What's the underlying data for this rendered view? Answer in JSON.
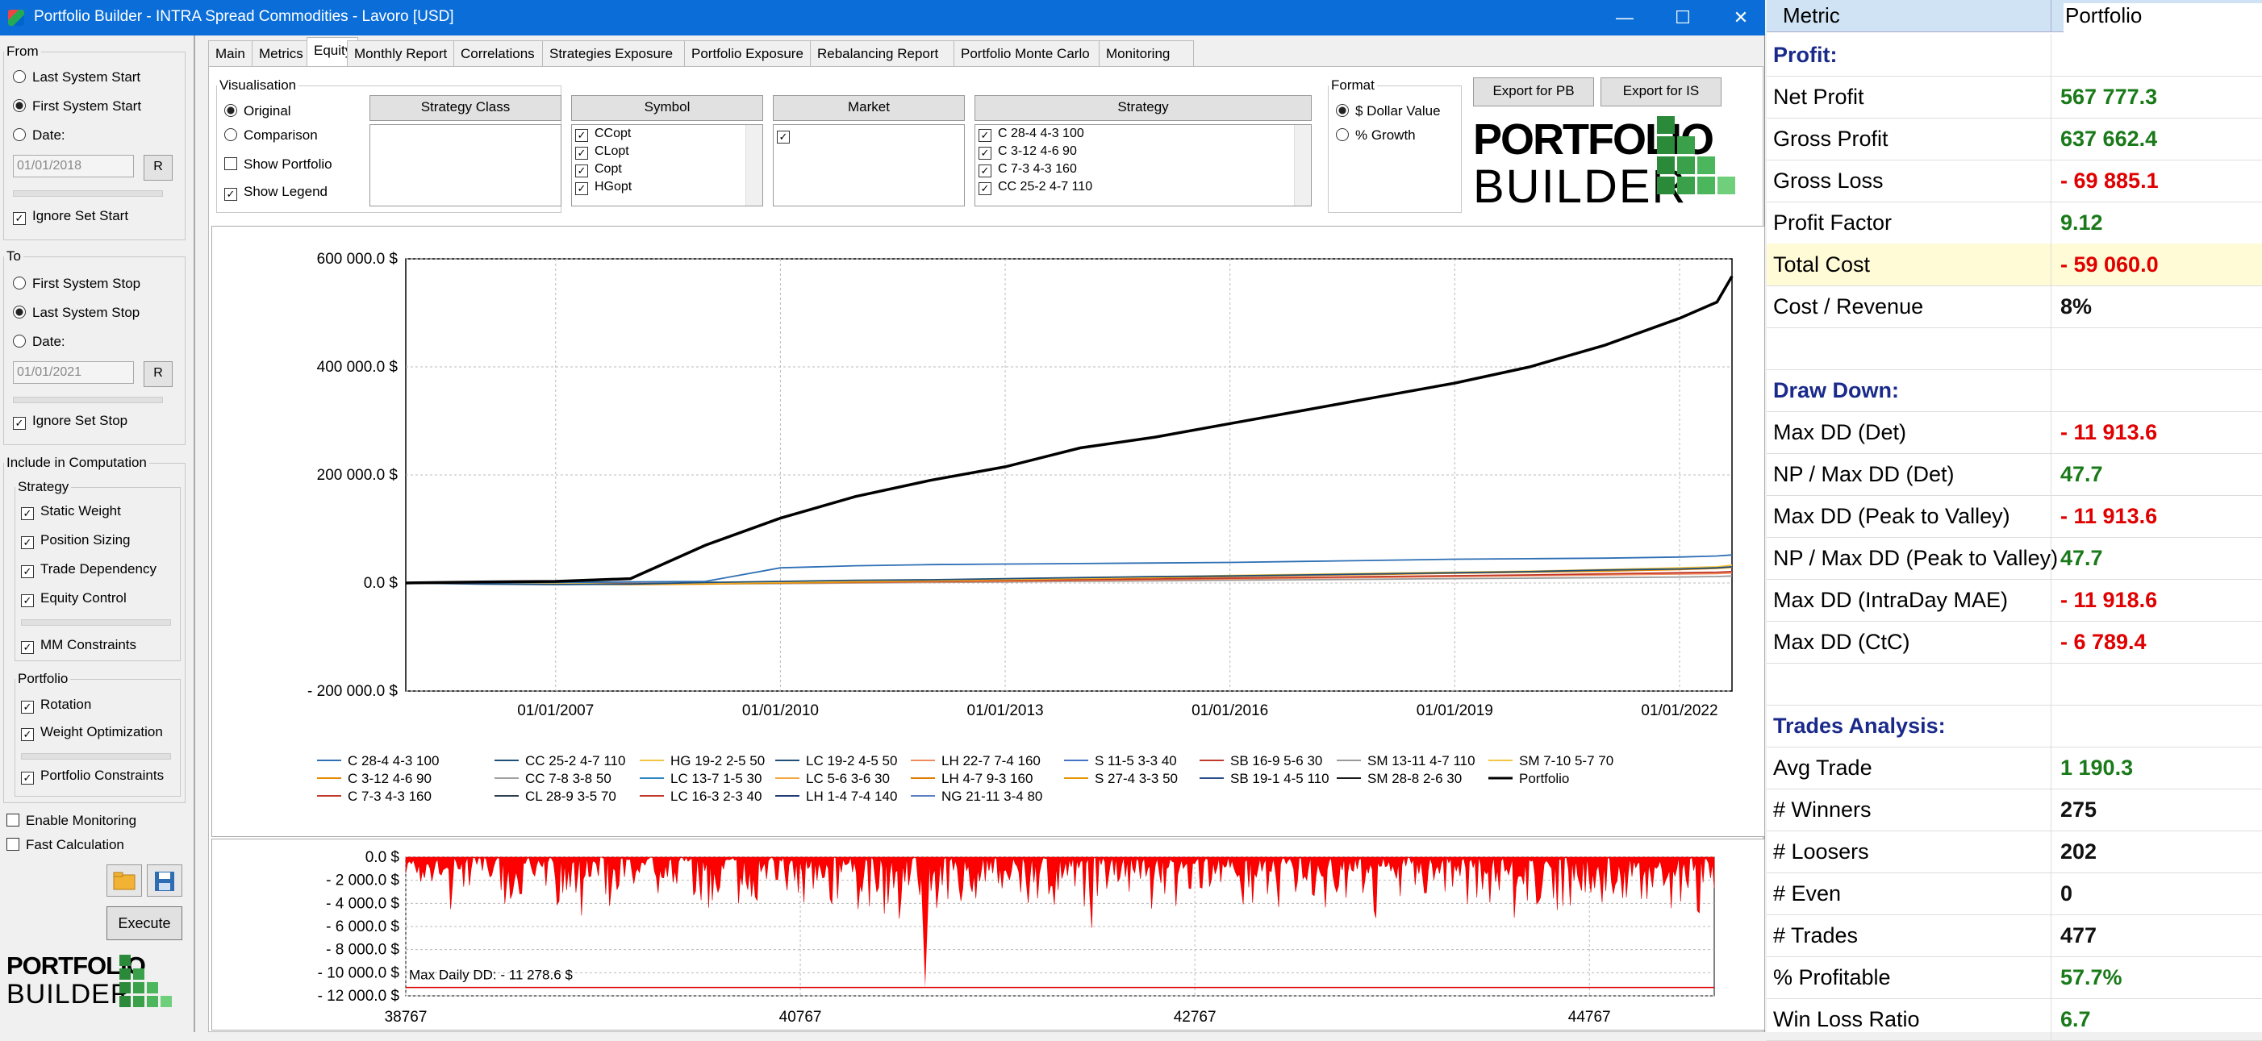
{
  "window": {
    "title": "Portfolio Builder - INTRA Spread Commodities - Lavoro [USD]",
    "minimize": "—",
    "maximize": "☐",
    "close": "✕"
  },
  "left": {
    "from_legend": "From",
    "from_opt1": "Last System Start",
    "from_opt2": "First System Start",
    "from_opt3": "Date:",
    "from_date": "01/01/2018",
    "reset": "R",
    "ignore_start": "Ignore Set Start",
    "to_legend": "To",
    "to_opt1": "First System Stop",
    "to_opt2": "Last System Stop",
    "to_opt3": "Date:",
    "to_date": "01/01/2021",
    "ignore_stop": "Ignore Set Stop",
    "include_legend": "Include in Computation",
    "strategy_legend": "Strategy",
    "static_weight": "Static Weight",
    "position_sizing": "Position Sizing",
    "trade_dependency": "Trade Dependency",
    "equity_control": "Equity Control",
    "mm_constraints": "MM Constraints",
    "portfolio_legend": "Portfolio",
    "rotation": "Rotation",
    "weight_opt": "Weight Optimization",
    "portfolio_constraints": "Portfolio Constraints",
    "enable_monitoring": "Enable Monitoring",
    "fast_calc": "Fast Calculation",
    "execute": "Execute"
  },
  "logo": {
    "line1": "PORTFOLIO",
    "line2": "BUILDER"
  },
  "tabs": [
    "Main",
    "Metrics",
    "Equity",
    "Monthly Report",
    "Correlations",
    "Strategies Exposure",
    "Portfolio Exposure",
    "Rebalancing Report",
    "Portfolio Monte Carlo",
    "Monitoring"
  ],
  "vis": {
    "legend": "Visualisation",
    "original": "Original",
    "comparison": "Comparison",
    "show_portfolio": "Show Portfolio",
    "show_legend": "Show Legend"
  },
  "filters": {
    "strategy_class": "Strategy Class",
    "symbol": "Symbol",
    "market": "Market",
    "strategy": "Strategy",
    "symbols": [
      "CCopt",
      "CLopt",
      "Copt",
      "HGopt"
    ],
    "strategies": [
      "C 28-4 4-3 100",
      "C 3-12 4-6 90",
      "C 7-3 4-3 160",
      "CC 25-2 4-7 110"
    ]
  },
  "format": {
    "legend": "Format",
    "dollar": "$ Dollar Value",
    "growth": "% Growth"
  },
  "export": {
    "pb": "Export for PB",
    "is": "Export for IS"
  },
  "chart_data": [
    {
      "type": "line",
      "ylim": [
        -200000,
        600000
      ],
      "yticks": [
        "600 000.0 $",
        "400 000.0 $",
        "200 000.0 $",
        "0.0 $",
        "- 200 000.0 $"
      ],
      "xticks": [
        "01/01/2007",
        "01/01/2010",
        "01/01/2013",
        "01/01/2016",
        "01/01/2019",
        "01/01/2022"
      ],
      "x": [
        2005,
        2006,
        2007,
        2008,
        2009,
        2010,
        2011,
        2012,
        2013,
        2014,
        2015,
        2016,
        2017,
        2018,
        2019,
        2020,
        2021,
        2022,
        2022.5,
        2022.7
      ],
      "series": [
        {
          "name": "Portfolio",
          "color": "#000000",
          "values": [
            0,
            2000,
            3000,
            8000,
            70000,
            120000,
            160000,
            190000,
            215000,
            250000,
            270000,
            295000,
            320000,
            345000,
            370000,
            400000,
            440000,
            490000,
            520000,
            567777
          ]
        },
        {
          "name": "C 28-4 4-3 100",
          "color": "#2e6fb5",
          "values": [
            0,
            0,
            1000,
            2000,
            3000,
            28000,
            32000,
            34000,
            35000,
            36000,
            37000,
            38000,
            40000,
            42000,
            44000,
            45000,
            46000,
            48000,
            50000,
            52000
          ]
        },
        {
          "name": "CC 25-2 4-7 110",
          "color": "#1f4e79",
          "values": [
            0,
            -2000,
            -3000,
            -2000,
            1000,
            3000,
            5000,
            6000,
            8000,
            10000,
            12000,
            13000,
            15000,
            17000,
            19000,
            21000,
            24000,
            26000,
            28000,
            30000
          ]
        },
        {
          "name": "HG 19-2 2-5 50",
          "color": "#f4c542",
          "values": [
            0,
            0,
            -1000,
            -2000,
            0,
            2000,
            4000,
            5000,
            7000,
            9000,
            11000,
            14000,
            16000,
            18000,
            20000,
            22000,
            25000,
            28000,
            30000,
            33000
          ]
        },
        {
          "name": "C 3-12 4-6 90",
          "color": "#e68a00",
          "values": [
            0,
            -1000,
            -2000,
            -3000,
            -2000,
            0,
            2000,
            4000,
            6000,
            8000,
            10000,
            12000,
            14000,
            16000,
            18000,
            20000,
            22000,
            25000,
            27000,
            29000
          ]
        },
        {
          "name": "SB 16-9 5-6 30",
          "color": "#c0392b",
          "values": [
            0,
            0,
            -1000,
            -1500,
            -500,
            500,
            1500,
            3000,
            4500,
            6000,
            7500,
            9000,
            10500,
            12000,
            13500,
            15000,
            17000,
            19000,
            20000,
            21000
          ]
        },
        {
          "name": "LH 22-7 7-4 160",
          "color": "#f08a5d",
          "values": [
            0,
            0,
            0,
            -1000,
            -500,
            0,
            1000,
            2000,
            3000,
            4500,
            6000,
            7500,
            9000,
            10500,
            12000,
            13500,
            15000,
            16500,
            17500,
            18500
          ]
        },
        {
          "name": "SM 13-11 4-7 110",
          "color": "#999999",
          "values": [
            0,
            0,
            -500,
            -1000,
            -1500,
            -1000,
            0,
            1000,
            2000,
            3000,
            4000,
            5000,
            6000,
            7000,
            8000,
            9000,
            10000,
            11000,
            12000,
            13000
          ]
        }
      ],
      "legend": [
        "C 28-4 4-3 100",
        "CC 25-2 4-7 110",
        "HG 19-2 2-5 50",
        "LC 19-2 4-5 50",
        "LH 22-7 7-4 160",
        "S 11-5 3-3 40",
        "SB 16-9 5-6 30",
        "SM 13-11 4-7 110",
        "SM 7-10 5-7 70",
        "C 3-12 4-6 90",
        "CC 7-8 3-8 50",
        "LC 13-7 1-5 30",
        "LC 5-6 3-6 30",
        "LH 4-7 9-3 160",
        "S 27-4 3-3 50",
        "SB 19-1 4-5 110",
        "SM 28-8 2-6 30",
        "Portfolio",
        "C 7-3 4-3 160",
        "CL 28-9 3-5 70",
        "LC 16-3 2-3 40",
        "LH 1-4 7-4 140",
        "NG 21-11 3-4 80"
      ],
      "legend_colors": [
        "#2e6fb5",
        "#1f4e79",
        "#f4c542",
        "#1f4e79",
        "#f08a5d",
        "#4472c4",
        "#c0392b",
        "#999999",
        "#f4c542",
        "#e68a00",
        "#a0a0a0",
        "#2e86c1",
        "#f4a742",
        "#e07b00",
        "#e69500",
        "#2c4f8a",
        "#1a1a1a",
        "#000000",
        "#c0392b",
        "#2c3e50",
        "#c0392b",
        "#1f3b73",
        "#5b7fc4"
      ]
    },
    {
      "type": "area",
      "ylim": [
        -12000,
        0
      ],
      "yticks": [
        "0.0 $",
        "- 2 000.0 $",
        "- 4 000.0 $",
        "- 6 000.0 $",
        "- 8 000.0 $",
        "- 10 000.0 $",
        "- 12 000.0 $"
      ],
      "xticks": [
        "38767",
        "40767",
        "42767",
        "44767"
      ],
      "annotation": "Max Daily DD: - 11 278.6 $",
      "max_dd": -11278.6,
      "x_range": [
        38767,
        45400
      ]
    }
  ],
  "metrics": {
    "header_metric": "Metric",
    "header_portfolio": "Portfolio",
    "rows": [
      {
        "name": "Profit:",
        "value": "",
        "kind": "sec"
      },
      {
        "name": "Net Profit",
        "value": "567 777.3",
        "kind": "pos"
      },
      {
        "name": "Gross Profit",
        "value": "637 662.4",
        "kind": "pos"
      },
      {
        "name": "Gross Loss",
        "value": "- 69 885.1",
        "kind": "neg"
      },
      {
        "name": "Profit Factor",
        "value": "9.12",
        "kind": "pos"
      },
      {
        "name": "Total Cost",
        "value": "- 59 060.0",
        "kind": "neg",
        "hl": true
      },
      {
        "name": "Cost / Revenue",
        "value": "8%",
        "kind": "blk"
      },
      {
        "name": "",
        "value": "",
        "kind": "blk"
      },
      {
        "name": "Draw Down:",
        "value": "",
        "kind": "sec"
      },
      {
        "name": "Max DD (Det)",
        "value": "- 11 913.6",
        "kind": "neg"
      },
      {
        "name": "NP / Max DD (Det)",
        "value": "47.7",
        "kind": "pos"
      },
      {
        "name": "Max DD (Peak to Valley)",
        "value": "- 11 913.6",
        "kind": "neg"
      },
      {
        "name": "NP / Max DD (Peak to Valley)",
        "value": "47.7",
        "kind": "pos"
      },
      {
        "name": "Max DD (IntraDay MAE)",
        "value": "- 11 918.6",
        "kind": "neg"
      },
      {
        "name": "Max DD (CtC)",
        "value": "- 6 789.4",
        "kind": "neg"
      },
      {
        "name": "",
        "value": "",
        "kind": "blk"
      },
      {
        "name": "Trades Analysis:",
        "value": "",
        "kind": "sec"
      },
      {
        "name": "Avg Trade",
        "value": "1 190.3",
        "kind": "pos"
      },
      {
        "name": "# Winners",
        "value": "275",
        "kind": "blk"
      },
      {
        "name": "# Loosers",
        "value": "202",
        "kind": "blk"
      },
      {
        "name": "# Even",
        "value": "0",
        "kind": "blk"
      },
      {
        "name": "# Trades",
        "value": "477",
        "kind": "blk"
      },
      {
        "name": "% Profitable",
        "value": "57.7%",
        "kind": "pos"
      },
      {
        "name": "Win Loss Ratio",
        "value": "6.7",
        "kind": "pos"
      }
    ]
  }
}
